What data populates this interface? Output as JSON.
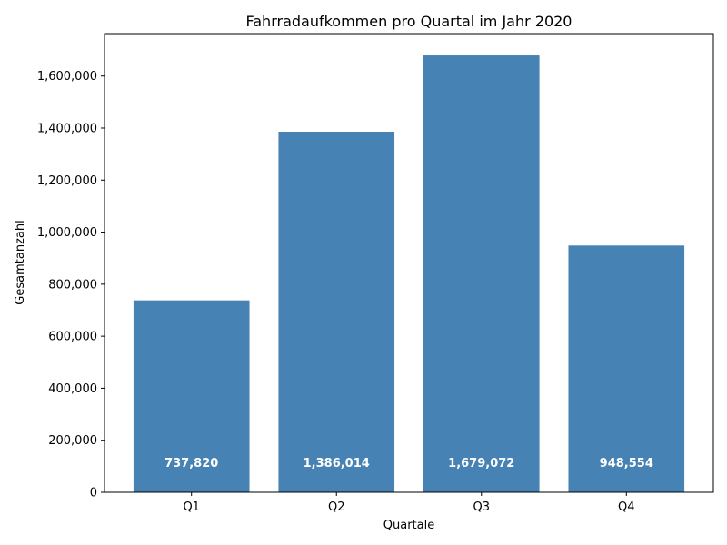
{
  "chart_data": {
    "type": "bar",
    "title": "Fahrradaufkommen pro Quartal im Jahr 2020",
    "xlabel": "Quartale",
    "ylabel": "Gesamtanzahl",
    "categories": [
      "Q1",
      "Q2",
      "Q3",
      "Q4"
    ],
    "values": [
      737820,
      1386014,
      1679072,
      948554
    ],
    "value_labels": [
      "737,820",
      "1,386,014",
      "1,679,072",
      "948,554"
    ],
    "ylim": [
      0,
      1763026
    ],
    "yticks": [
      0,
      200000,
      400000,
      600000,
      800000,
      1000000,
      1200000,
      1400000,
      1600000
    ],
    "ytick_labels": [
      "0",
      "200,000",
      "400,000",
      "600,000",
      "800,000",
      "1,000,000",
      "1,200,000",
      "1,400,000",
      "1,600,000"
    ],
    "grid": false,
    "legend": "none",
    "bar_color": "#4682b4",
    "label_color": "#ffffff"
  }
}
